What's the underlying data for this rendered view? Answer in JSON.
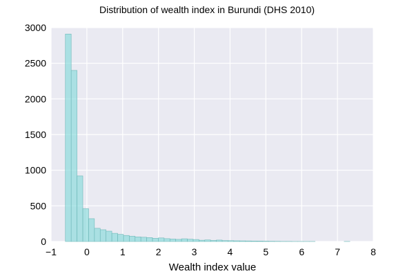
{
  "chart_data": {
    "type": "bar",
    "title": "Distribution of wealth index in Burundi (DHS 2010)",
    "xlabel": "Wealth index value",
    "ylabel": "",
    "xlim": [
      -1,
      8
    ],
    "ylim": [
      0,
      3000
    ],
    "xticks": [
      "−1",
      "0",
      "1",
      "2",
      "3",
      "4",
      "5",
      "6",
      "7",
      "8"
    ],
    "yticks": [
      "0",
      "500",
      "1000",
      "1500",
      "2000",
      "2500",
      "3000"
    ],
    "grid": true,
    "colors": {
      "plot_bg": "#eaeaf2",
      "grid": "#ffffff",
      "bar_fill": "#7fd8d8",
      "bar_stroke": "#6fb8b8"
    },
    "bins": {
      "start": -0.6,
      "width": 0.1622,
      "counts": [
        2910,
        2400,
        920,
        460,
        320,
        185,
        165,
        145,
        115,
        100,
        85,
        75,
        65,
        60,
        55,
        45,
        50,
        40,
        35,
        30,
        38,
        32,
        28,
        18,
        22,
        15,
        20,
        13,
        12,
        10,
        9,
        8,
        7,
        6,
        5,
        4,
        3,
        2,
        2,
        1,
        1,
        1,
        1,
        0,
        0,
        0,
        0,
        0,
        1
      ]
    }
  }
}
